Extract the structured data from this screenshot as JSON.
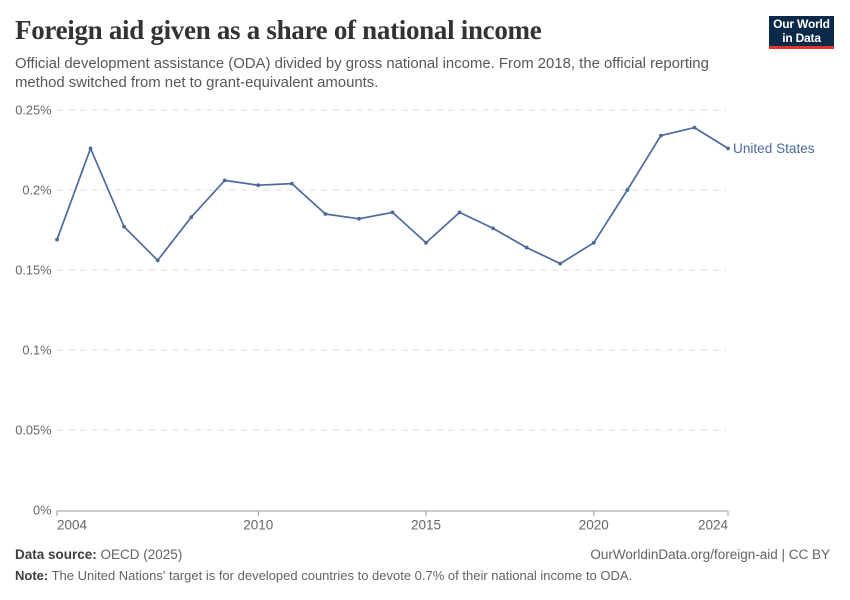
{
  "header": {
    "title": "Foreign aid given as a share of national income",
    "subtitle": "Official development assistance (ODA) divided by gross national income. From 2018, the official reporting method switched from net to grant-equivalent amounts.",
    "logo_line1": "Our World",
    "logo_line2": "in Data"
  },
  "chart_data": {
    "type": "line",
    "title": "Foreign aid given as a share of national income",
    "series": [
      {
        "name": "United States",
        "color": "#4c6a9c",
        "x": [
          2004,
          2005,
          2006,
          2007,
          2008,
          2009,
          2010,
          2011,
          2012,
          2013,
          2014,
          2015,
          2016,
          2017,
          2018,
          2019,
          2020,
          2021,
          2022,
          2023,
          2024
        ],
        "values": [
          0.169,
          0.226,
          0.177,
          0.156,
          0.183,
          0.206,
          0.203,
          0.204,
          0.185,
          0.182,
          0.186,
          0.167,
          0.186,
          0.176,
          0.164,
          0.154,
          0.167,
          0.2,
          0.234,
          0.239,
          0.226
        ]
      }
    ],
    "unit": "%",
    "ylim": [
      0,
      0.25
    ],
    "y_ticks": [
      {
        "value": 0,
        "label": "0%"
      },
      {
        "value": 0.05,
        "label": "0.05%"
      },
      {
        "value": 0.1,
        "label": "0.1%"
      },
      {
        "value": 0.15,
        "label": "0.15%"
      },
      {
        "value": 0.2,
        "label": "0.2%"
      },
      {
        "value": 0.25,
        "label": "0.25%"
      }
    ],
    "x_ticks": [
      {
        "value": 2004,
        "label": "2004"
      },
      {
        "value": 2010,
        "label": "2010"
      },
      {
        "value": 2015,
        "label": "2015"
      },
      {
        "value": 2020,
        "label": "2020"
      },
      {
        "value": 2024,
        "label": "2024"
      }
    ],
    "grid": true,
    "legend_position": "end-of-line"
  },
  "footer": {
    "source_label": "Data source:",
    "source_value": " OECD (2025)",
    "link": "OurWorldinData.org/foreign-aid | CC BY",
    "note_label": "Note:",
    "note_value": " The United Nations' target is for developed countries to devote 0.7% of their national income to ODA."
  },
  "colors": {
    "line": "#4c6a9c",
    "grid": "#dddddd",
    "axis": "#999999",
    "tick_text": "#666666",
    "logo_bg": "#0b2a4a",
    "logo_stripe": "#e5332d"
  }
}
